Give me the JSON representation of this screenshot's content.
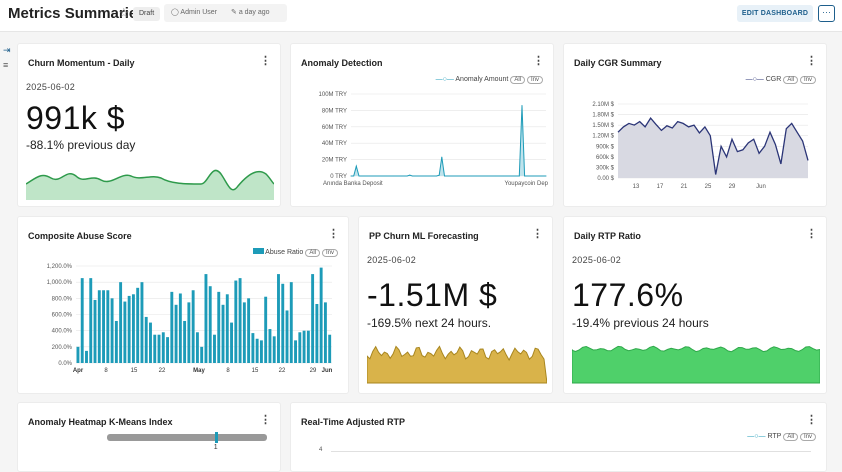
{
  "header": {
    "title": "Metrics Summaries",
    "status": "Draft",
    "owner": "Admin User",
    "modified": "a day ago",
    "edit_label": "EDIT DASHBOARD",
    "more": "···"
  },
  "colors": {
    "green": "#3aa856",
    "teal": "#1d9bb8",
    "navy": "#2b3577",
    "gold": "#c9a227",
    "accent": "#1e5f8c"
  },
  "cards": {
    "churn": {
      "title": "Churn Momentum - Daily",
      "date": "2025-06-02",
      "value": "991k $",
      "subtitle": "-88.1% previous day"
    },
    "anomaly": {
      "title": "Anomaly Detection",
      "legend": "Anomaly Amount",
      "all": "All",
      "inv": "Inv"
    },
    "cgr": {
      "title": "Daily CGR Summary",
      "legend": "CGR",
      "all": "All",
      "inv": "Inv"
    },
    "abuse": {
      "title": "Composite Abuse Score",
      "legend": "Abuse Ratio",
      "all": "All",
      "inv": "Inv"
    },
    "ppchurn": {
      "title": "PP Churn ML Forecasting",
      "date": "2025-06-02",
      "value": "-1.51M $",
      "subtitle": "-169.5% next 24 hours."
    },
    "rtp": {
      "title": "Daily RTP Ratio",
      "date": "2025-06-02",
      "value": "177.6%",
      "subtitle": "-19.4% previous 24 hours"
    },
    "heatmap": {
      "title": "Anomaly Heatmap K-Means Index",
      "slider_label": "1",
      "slider_value_fraction": 0.68
    },
    "realtime": {
      "title": "Real-Time Adjusted RTP",
      "legend": "RTP",
      "all": "All",
      "inv": "Inv",
      "ytick": "4"
    }
  },
  "chart_data": [
    {
      "type": "line",
      "title": "Anomaly Detection",
      "series": [
        {
          "name": "Anomaly Amount",
          "values": [
            0,
            0,
            12,
            0,
            0,
            0,
            0,
            0,
            0,
            0,
            0,
            0,
            0,
            0,
            0,
            0,
            0,
            0,
            0,
            0,
            0,
            0,
            1,
            0,
            0,
            0,
            0,
            0,
            0,
            0,
            0,
            0,
            0,
            1,
            23,
            0,
            0,
            0,
            0,
            0,
            0,
            0,
            0,
            0,
            0,
            0,
            0,
            0,
            0,
            0,
            0,
            0,
            0,
            0,
            0,
            0,
            0,
            0,
            0,
            0,
            0,
            0,
            0,
            0,
            86,
            0,
            0,
            0,
            0,
            0,
            0,
            0,
            0,
            0
          ]
        }
      ],
      "yticks": [
        "0 TRY",
        "20M TRY",
        "40M TRY",
        "60M TRY",
        "80M TRY",
        "100M TRY"
      ],
      "ylim": [
        0,
        100
      ],
      "xticks": [
        "Anında Banka Deposit",
        "Youpaycoin Dep"
      ]
    },
    {
      "type": "area",
      "title": "Daily CGR Summary",
      "series": [
        {
          "name": "CGR",
          "values": [
            1.3,
            1.45,
            1.55,
            1.5,
            1.6,
            1.45,
            1.7,
            1.52,
            1.35,
            1.48,
            1.42,
            1.6,
            1.55,
            1.45,
            1.5,
            1.28,
            1.45,
            1.2,
            0.1,
            0.9,
            0.6,
            1.1,
            0.75,
            0.8,
            1.0,
            1.1,
            0.7,
            0.9,
            1.3,
            0.95,
            0.4,
            1.4,
            1.55,
            1.3,
            1.05,
            0.5
          ]
        }
      ],
      "yticks": [
        "0.00 $",
        "300k $",
        "600k $",
        "900k $",
        "1.20M $",
        "1.50M $",
        "1.80M $",
        "2.10M $"
      ],
      "ylim": [
        0,
        2.1
      ],
      "xticks": [
        "13",
        "17",
        "21",
        "25",
        "29",
        "Jun"
      ]
    },
    {
      "type": "bar",
      "title": "Composite Abuse Score",
      "series": [
        {
          "name": "Abuse Ratio",
          "values": [
            200,
            1050,
            150,
            1050,
            780,
            900,
            900,
            900,
            800,
            520,
            1000,
            760,
            830,
            850,
            930,
            1000,
            570,
            500,
            350,
            350,
            380,
            320,
            880,
            720,
            860,
            520,
            750,
            900,
            380,
            200,
            1100,
            950,
            350,
            880,
            720,
            850,
            500,
            1020,
            1050,
            750,
            800,
            370,
            300,
            280,
            820,
            420,
            330,
            1100,
            980,
            650,
            1000,
            280,
            380,
            400,
            400,
            1100,
            730,
            1180,
            750,
            350
          ]
        }
      ],
      "yticks": [
        "0.0%",
        "200.0%",
        "400.0%",
        "600.0%",
        "800.0%",
        "1,000.0%",
        "1,200.0%"
      ],
      "ylim": [
        0,
        1200
      ],
      "xticks": [
        "Apr",
        "8",
        "15",
        "22",
        "May",
        "8",
        "15",
        "22",
        "29",
        "Jun"
      ]
    },
    {
      "type": "line",
      "title": "Real-Time Adjusted RTP",
      "series": [
        {
          "name": "RTP",
          "values": []
        }
      ],
      "yticks": [
        "4"
      ]
    }
  ]
}
